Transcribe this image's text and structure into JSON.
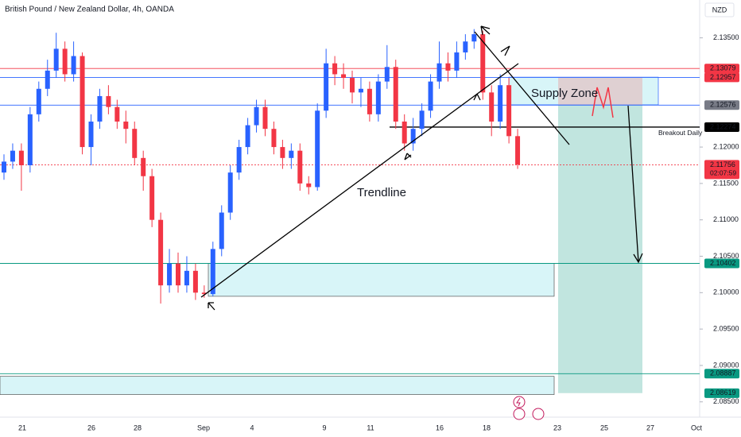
{
  "chart_data": {
    "type": "candlestick",
    "title": "British Pound / New Zealand Dollar, 4h, OANDA",
    "currency": "NZD",
    "countdown": "02:07:59",
    "annotations": [
      "Supply Zone",
      "Trendline"
    ],
    "up_color": "#2962ff",
    "down_color": "#f23645",
    "open": [
      2.1165,
      2.118,
      2.1195,
      2.1175,
      2.1245,
      2.128,
      2.1305,
      2.1335,
      2.13,
      2.1325,
      2.12,
      2.1235,
      2.127,
      2.1255,
      2.1235,
      2.1225,
      2.1185,
      2.116,
      2.11,
      2.101,
      2.104,
      2.101,
      2.103,
      2.1,
      2.0998,
      2.106,
      2.111,
      2.1165,
      2.12,
      2.123,
      2.1255,
      2.1225,
      2.12,
      2.1185,
      2.1195,
      2.115,
      2.1145,
      2.125,
      2.1315,
      2.13,
      2.1295,
      2.1275,
      2.128,
      2.1245,
      2.129,
      2.131,
      2.1235,
      2.1205,
      2.1225,
      2.125,
      2.129,
      2.1315,
      2.1305,
      2.133,
      2.1345,
      2.1355,
      2.1275,
      2.1235,
      2.1285,
      2.1215
    ],
    "high": [
      2.119,
      2.1205,
      2.1205,
      2.1255,
      2.129,
      2.132,
      2.1357,
      2.1345,
      2.1345,
      2.133,
      2.1245,
      2.128,
      2.1285,
      2.1265,
      2.125,
      2.1235,
      2.1195,
      2.117,
      2.111,
      2.106,
      2.1055,
      2.105,
      2.104,
      2.101,
      2.107,
      2.112,
      2.1175,
      2.121,
      2.124,
      2.1265,
      2.1265,
      2.1235,
      2.121,
      2.1205,
      2.1205,
      2.116,
      2.126,
      2.1335,
      2.1325,
      2.1315,
      2.1305,
      2.1295,
      2.129,
      2.13,
      2.134,
      2.132,
      2.1245,
      2.124,
      2.126,
      2.13,
      2.1345,
      2.133,
      2.1345,
      2.1355,
      2.1362,
      2.136,
      2.1285,
      2.13,
      2.1295,
      2.1225
    ],
    "low": [
      2.1155,
      2.117,
      2.114,
      2.1165,
      2.1235,
      2.127,
      2.1295,
      2.129,
      2.129,
      2.119,
      2.1175,
      2.1225,
      2.1245,
      2.1225,
      2.1205,
      2.1175,
      2.114,
      2.109,
      2.0985,
      2.1,
      2.1,
      2.1,
      2.099,
      2.0993,
      2.0995,
      2.105,
      2.11,
      2.1155,
      2.119,
      2.122,
      2.1215,
      2.119,
      2.117,
      2.117,
      2.114,
      2.1135,
      2.114,
      2.124,
      2.1285,
      2.128,
      2.126,
      2.1255,
      2.1235,
      2.1235,
      2.128,
      2.1225,
      2.1195,
      2.1195,
      2.1215,
      2.124,
      2.128,
      2.129,
      2.1295,
      2.132,
      2.1335,
      2.1265,
      2.1215,
      2.1225,
      2.1205,
      2.117
    ],
    "close": [
      2.118,
      2.1195,
      2.1175,
      2.1245,
      2.128,
      2.1305,
      2.1335,
      2.13,
      2.1325,
      2.12,
      2.1235,
      2.127,
      2.1255,
      2.1235,
      2.1225,
      2.1185,
      2.116,
      2.11,
      2.101,
      2.104,
      2.101,
      2.103,
      2.1,
      2.0998,
      2.106,
      2.111,
      2.1165,
      2.12,
      2.123,
      2.1255,
      2.1225,
      2.12,
      2.1185,
      2.1195,
      2.115,
      2.1145,
      2.125,
      2.1315,
      2.13,
      2.1295,
      2.1275,
      2.128,
      2.1245,
      2.129,
      2.131,
      2.1235,
      2.1205,
      2.1225,
      2.125,
      2.129,
      2.1315,
      2.1305,
      2.133,
      2.1345,
      2.1355,
      2.1275,
      2.1235,
      2.1285,
      2.1215,
      2.1176
    ],
    "ylim": [
      2.0829,
      2.1402
    ],
    "yticks": [
      {
        "value": 2.135,
        "label": "2.13500"
      },
      {
        "value": 2.12,
        "label": "2.12000"
      },
      {
        "value": 2.115,
        "label": "2.11500"
      },
      {
        "value": 2.11,
        "label": "2.11000"
      },
      {
        "value": 2.105,
        "label": "2.10500"
      },
      {
        "value": 2.1,
        "label": "2.10000"
      },
      {
        "value": 2.095,
        "label": "2.09500"
      },
      {
        "value": 2.09,
        "label": "2.09000"
      },
      {
        "value": 2.085,
        "label": "2.08500"
      }
    ],
    "xtick_labels": [
      "21",
      "26",
      "28",
      "Sep",
      "4",
      "9",
      "11",
      "16",
      "18",
      "23",
      "25",
      "27",
      "Oct"
    ],
    "levels": [
      {
        "value": 2.13079,
        "color": "#f23645",
        "label_color": "#f23645"
      },
      {
        "value": 2.12957,
        "color": "#2962ff",
        "label_color": "#f23645"
      },
      {
        "value": 2.12576,
        "color": "#2962ff",
        "label_color": "#787b86"
      },
      {
        "value": 2.12274,
        "color": "#000000",
        "label_color": "#000000",
        "name": "Breakout Daily"
      },
      {
        "value": 2.11756,
        "color": "#f23645",
        "label_color": "#f23645",
        "dotted": true
      },
      {
        "value": 2.10402,
        "color": "#089981",
        "label_color": "#089981"
      },
      {
        "value": 2.08887,
        "color": "#089981",
        "label_color": "#089981"
      },
      {
        "value": 2.08619,
        "color": "#089981",
        "label_color": "#089981",
        "line": false
      }
    ],
    "zones": [
      {
        "top": 2.1296,
        "bottom": 2.1258
      },
      {
        "top": 2.1258,
        "bottom": 2.0862
      },
      {
        "top": 2.104,
        "bottom": 2.0995
      },
      {
        "top": 2.0885,
        "bottom": 2.086
      }
    ]
  }
}
